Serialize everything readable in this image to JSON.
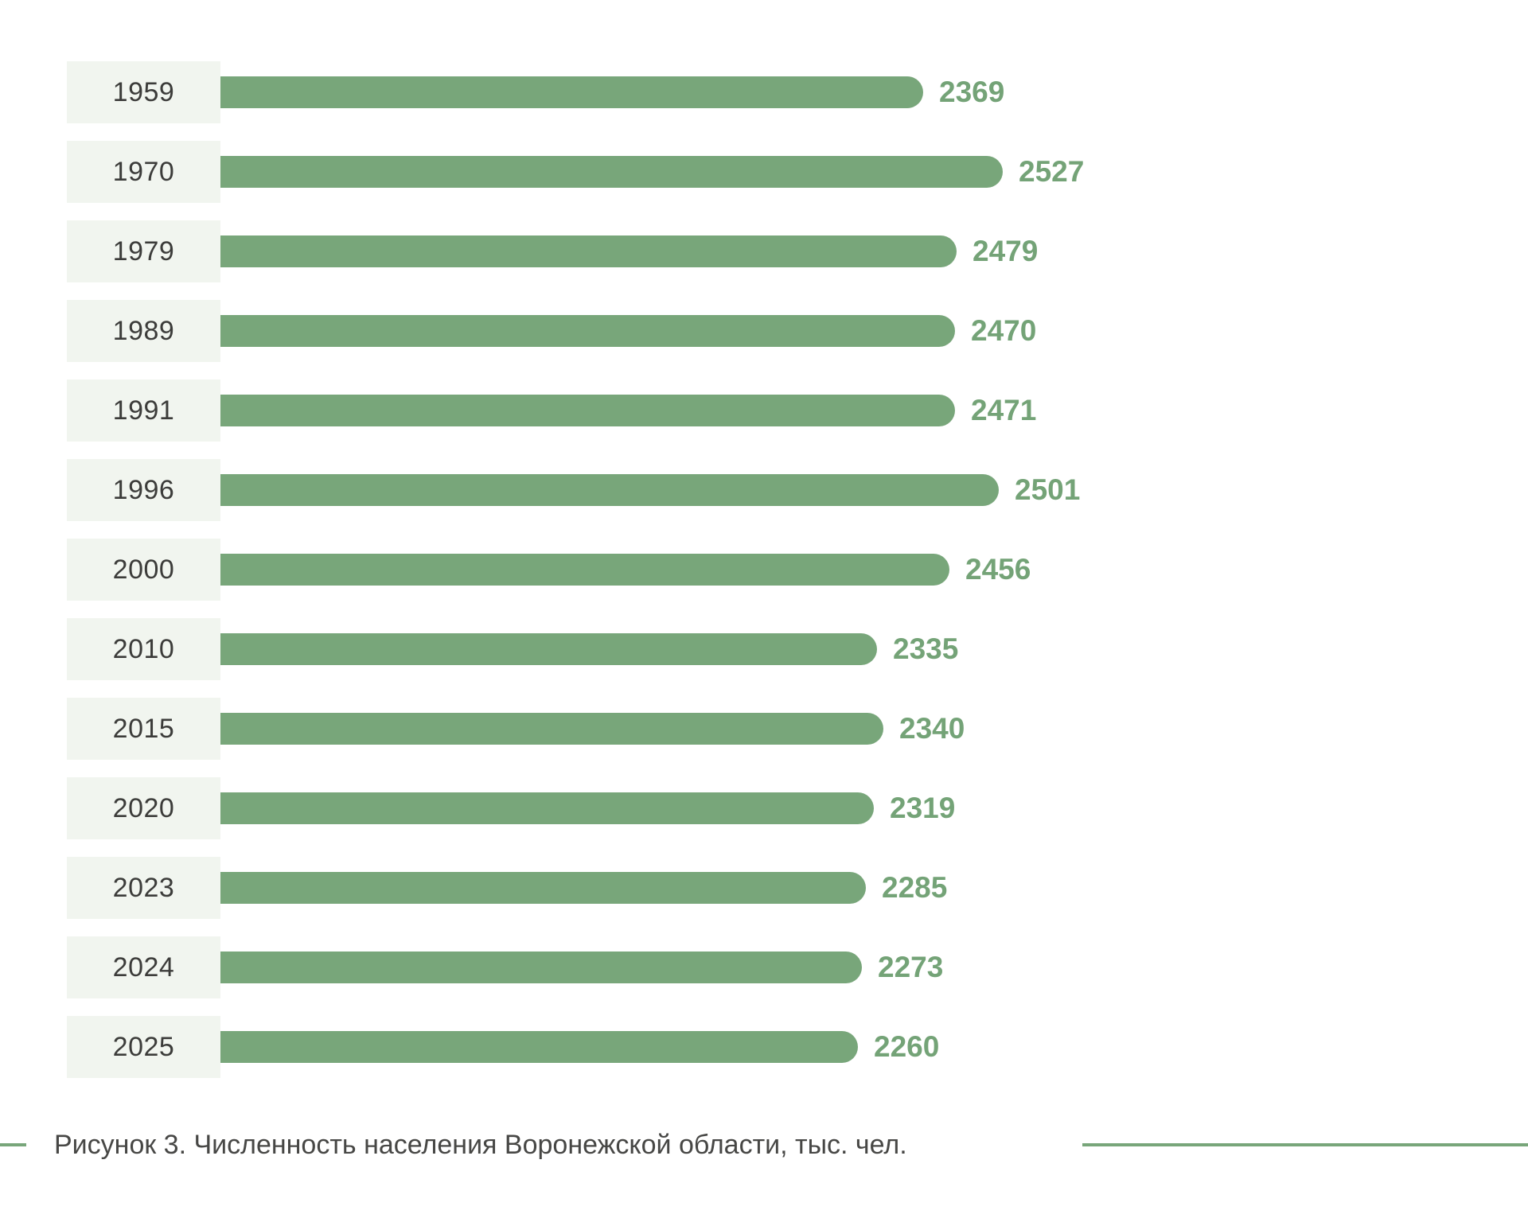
{
  "caption": {
    "text": "Рисунок 3. Численность населения Воронежской области, тыс. чел."
  },
  "colors": {
    "bar_color": "#78A67A",
    "value_color": "#74A377",
    "year_color": "#3C3C3A",
    "box_bg": "#F1F5EF",
    "caption_color": "#474745",
    "rule_color": "#78A67A"
  },
  "chart_data": {
    "type": "bar",
    "orientation": "horizontal",
    "title": "Рисунок 3. Численность населения Воронежской области, тыс. чел.",
    "unit": "тыс. чел.",
    "categories": [
      "1959",
      "1970",
      "1979",
      "1989",
      "1991",
      "1996",
      "2000",
      "2010",
      "2015",
      "2020",
      "2023",
      "2024",
      "2025"
    ],
    "values": [
      2369,
      2527,
      2479,
      2470,
      2471,
      2501,
      2456,
      2335,
      2340,
      2319,
      2285,
      2273,
      2260
    ],
    "value_labels_shown": true,
    "grid": false,
    "legend": false,
    "axis_shown": false,
    "rows": [
      {
        "year": "1959",
        "value": 2369,
        "len": 883
      },
      {
        "year": "1970",
        "value": 2527,
        "len": 983
      },
      {
        "year": "1979",
        "value": 2479,
        "len": 925
      },
      {
        "year": "1989",
        "value": 2470,
        "len": 923
      },
      {
        "year": "1991",
        "value": 2471,
        "len": 923
      },
      {
        "year": "1996",
        "value": 2501,
        "len": 978
      },
      {
        "year": "2000",
        "value": 2456,
        "len": 916
      },
      {
        "year": "2010",
        "value": 2335,
        "len": 825
      },
      {
        "year": "2015",
        "value": 2340,
        "len": 833
      },
      {
        "year": "2020",
        "value": 2319,
        "len": 821
      },
      {
        "year": "2023",
        "value": 2285,
        "len": 811
      },
      {
        "year": "2024",
        "value": 2273,
        "len": 806
      },
      {
        "year": "2025",
        "value": 2260,
        "len": 801
      }
    ]
  }
}
